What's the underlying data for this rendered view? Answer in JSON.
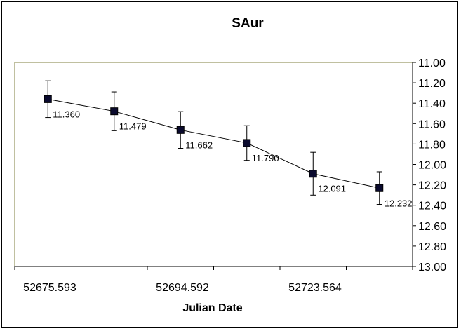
{
  "chart_data": {
    "type": "line",
    "title": "SAur",
    "xlabel": "Julian Date",
    "ylabel": "",
    "x_tick_labels": [
      "52675.593",
      "52694.592",
      "52723.564"
    ],
    "y_tick_labels": [
      "11.00",
      "11.20",
      "11.40",
      "11.60",
      "11.80",
      "12.00",
      "12.20",
      "12.40",
      "12.60",
      "12.80",
      "13.00"
    ],
    "ylim": [
      11.0,
      13.0
    ],
    "y_reversed": true,
    "y_axis_position": "right",
    "grid": false,
    "legend": "none",
    "series": [
      {
        "values": [
          11.36,
          11.479,
          11.662,
          11.79,
          12.091,
          12.232
        ],
        "labels": [
          "11.360",
          "11.479",
          "11.662",
          "11.790",
          "12.091",
          "12.232"
        ],
        "error": [
          0.18,
          0.19,
          0.18,
          0.17,
          0.21,
          0.16
        ],
        "color": "#0a0a2e"
      }
    ],
    "plot_border_color": "#808040"
  }
}
